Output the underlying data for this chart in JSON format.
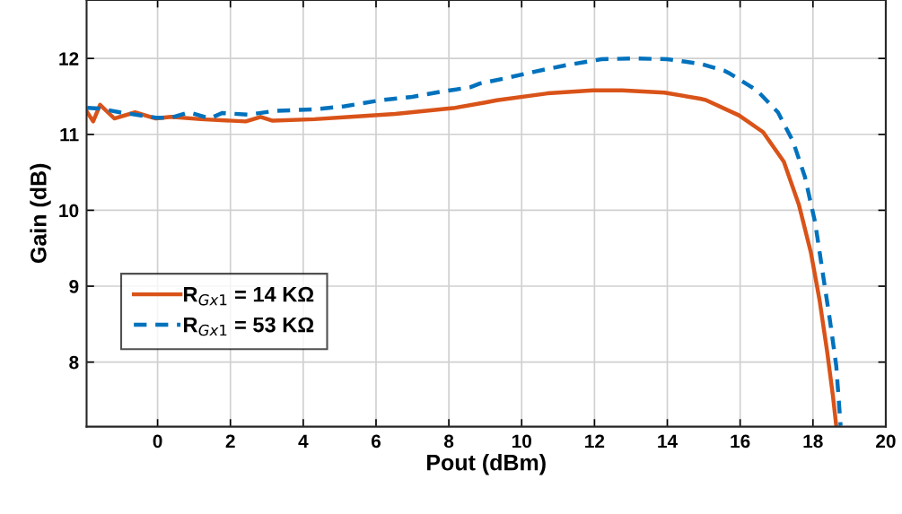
{
  "chart_data": {
    "type": "line",
    "xlabel": "Pout (dBm)",
    "ylabel": "Gain (dB)",
    "xlim": [
      -1.95,
      20
    ],
    "ylim": [
      7.15,
      12.77
    ],
    "xticks": [
      0,
      2,
      4,
      6,
      8,
      10,
      12,
      14,
      16,
      18,
      20
    ],
    "yticks": [
      8,
      9,
      10,
      11,
      12
    ],
    "grid": true,
    "legend": "left",
    "series": [
      {
        "name": "R$_{Gx1}$ = 14 KΩ",
        "color": "#d95319",
        "line_style": "solid",
        "x": [
          -1.93,
          -1.77,
          -1.58,
          -1.19,
          -0.62,
          -0.05,
          0.37,
          1.19,
          2.42,
          2.83,
          3.16,
          4.31,
          5.3,
          6.53,
          8.17,
          9.0,
          9.32,
          10.71,
          11.95,
          12.76,
          13.92,
          14.9,
          15.07,
          15.97,
          16.63,
          17.2,
          17.61,
          17.94,
          18.18,
          18.39,
          18.55,
          18.64
        ],
        "values": [
          11.29,
          11.17,
          11.39,
          11.21,
          11.29,
          11.21,
          11.23,
          11.2,
          11.17,
          11.23,
          11.18,
          11.2,
          11.23,
          11.27,
          11.35,
          11.42,
          11.45,
          11.54,
          11.58,
          11.58,
          11.55,
          11.47,
          11.45,
          11.25,
          11.03,
          10.64,
          10.08,
          9.45,
          8.82,
          8.14,
          7.55,
          7.16
        ]
      },
      {
        "name": "R$_{Gx1}$ = 53 KΩ",
        "color": "#0072bd",
        "line_style": "dashed",
        "x": [
          -1.93,
          -1.6,
          -1.03,
          -0.04,
          0.37,
          0.86,
          1.44,
          1.77,
          2.5,
          3.24,
          4.31,
          5.13,
          6.12,
          6.94,
          7.76,
          8.58,
          8.85,
          9.56,
          10.39,
          11.21,
          12.19,
          13.1,
          14.0,
          14.9,
          15.56,
          15.72,
          16.46,
          17.04,
          17.45,
          17.78,
          18.06,
          18.27,
          18.47,
          18.64,
          18.76
        ],
        "values": [
          11.35,
          11.34,
          11.29,
          11.22,
          11.22,
          11.29,
          11.21,
          11.28,
          11.26,
          11.31,
          11.33,
          11.37,
          11.45,
          11.49,
          11.56,
          11.62,
          11.67,
          11.74,
          11.83,
          11.91,
          11.99,
          12.0,
          11.99,
          11.93,
          11.84,
          11.8,
          11.58,
          11.29,
          10.91,
          10.44,
          9.84,
          9.17,
          8.54,
          7.95,
          7.16
        ]
      }
    ]
  }
}
